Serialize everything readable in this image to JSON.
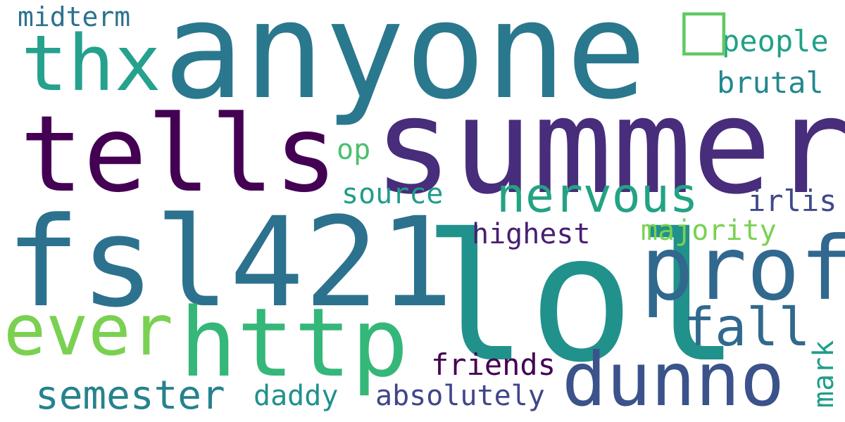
{
  "words": [
    {
      "text": "anyone",
      "color": "#2a788e"
    },
    {
      "text": "summer",
      "color": "#472d7b"
    },
    {
      "text": "fsl421",
      "color": "#2c728e"
    },
    {
      "text": "lol",
      "color": "#21918c"
    },
    {
      "text": "tells",
      "color": "#440154"
    },
    {
      "text": "prof",
      "color": "#31688e"
    },
    {
      "text": "http",
      "color": "#35b779"
    },
    {
      "text": "dunno",
      "color": "#3b528b"
    },
    {
      "text": "thx",
      "color": "#25a18e"
    },
    {
      "text": "ever",
      "color": "#7ad151"
    },
    {
      "text": "nervous",
      "color": "#22a384"
    },
    {
      "text": "fall",
      "color": "#30698e"
    },
    {
      "text": "semester",
      "color": "#26828e"
    },
    {
      "text": "midterm",
      "color": "#2c728e"
    },
    {
      "text": "people",
      "color": "#1fa187"
    },
    {
      "text": "brutal",
      "color": "#23888e"
    },
    {
      "text": "op",
      "color": "#4ac16d"
    },
    {
      "text": "source",
      "color": "#1f9e89"
    },
    {
      "text": "irlis",
      "color": "#3e4a89"
    },
    {
      "text": "majority",
      "color": "#7ad151"
    },
    {
      "text": "highest",
      "color": "#481f70"
    },
    {
      "text": "friends",
      "color": "#440154"
    },
    {
      "text": "absolutely",
      "color": "#404688"
    },
    {
      "text": "daddy",
      "color": "#21918c"
    },
    {
      "text": "mark",
      "color": "#1f9e89"
    }
  ],
  "emoji": {
    "glyph": "□",
    "color": "#5ec962"
  }
}
